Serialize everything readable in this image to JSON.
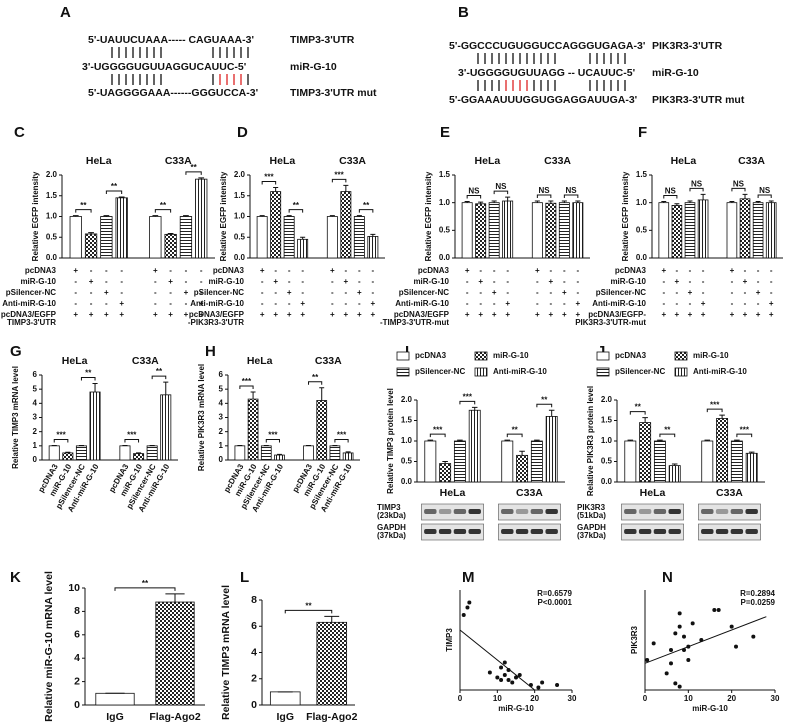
{
  "sequence_panels": [
    {
      "label": "A",
      "rows": [
        {
          "seq": "5'-UAUUCUAAA----- CAGUAAA-3'",
          "name": "TIMP3-3'UTR"
        },
        {
          "seq": "3'-UGGGGUGUUAGGUCAUUC-5'",
          "name": "miR-G-10"
        },
        {
          "seq": "5'-UAGGGGAAA------GGGUCCA-3'",
          "name": "TIMP3-3'UTR mut"
        }
      ]
    },
    {
      "label": "B",
      "rows": [
        {
          "seq": "5'-GGCCCUGUGGUCCAGGGUGAGA-3'",
          "name": "PIK3R3-3'UTR"
        },
        {
          "seq": "3'-UGGGGUGUUAGG -- UCAUUC-5'",
          "name": "miR-G-10"
        },
        {
          "seq": "5'-GGAAAUUUGGUGGAGGAUUGA-3'",
          "name": "PIK3R3-3'UTR mut"
        }
      ]
    }
  ],
  "chart_data": [
    {
      "type": "bar",
      "label": "C",
      "ylabel": "Relative EGFP intensity",
      "groups": [
        "HeLa",
        "C33A"
      ],
      "values": [
        1,
        0.58,
        1,
        1.45,
        1,
        0.57,
        1,
        1.9
      ],
      "errors": [
        0.02,
        0.03,
        0.02,
        0.02,
        0.02,
        0.02,
        0.02,
        0.03
      ],
      "significance": [
        "**",
        "**",
        "**",
        "**"
      ],
      "ylim": [
        0,
        2
      ],
      "yticks": [
        {
          "value": 0,
          "label": "0.0"
        },
        {
          "value": 0.5,
          "label": "0.5"
        },
        {
          "value": 1,
          "label": "1.0"
        },
        {
          "value": 1.5,
          "label": "1.5"
        },
        {
          "value": 2,
          "label": "2.0"
        }
      ],
      "treatments": [
        {
          "label": [
            "pcDNA3"
          ],
          "signs": [
            "+",
            "-",
            "-",
            "-",
            "+",
            "-",
            "-",
            "-"
          ]
        },
        {
          "label": [
            "miR-G-10"
          ],
          "signs": [
            "-",
            "+",
            "-",
            "-",
            "-",
            "+",
            "-",
            "-"
          ]
        },
        {
          "label": [
            "pSilencer-NC"
          ],
          "signs": [
            "-",
            "-",
            "+",
            "-",
            "-",
            "-",
            "+",
            "-"
          ]
        },
        {
          "label": [
            "Anti-miR-G-10"
          ],
          "signs": [
            "-",
            "-",
            "-",
            "+",
            "-",
            "-",
            "-",
            "+"
          ]
        },
        {
          "label": [
            "pcDNA3/EGFP",
            "TIMP3-3'UTR"
          ],
          "signs": [
            "+",
            "+",
            "+",
            "+",
            "+",
            "+",
            "+",
            "+"
          ]
        }
      ]
    },
    {
      "type": "bar",
      "label": "D",
      "ylabel": "Relative EGFP intensity",
      "groups": [
        "HeLa",
        "C33A"
      ],
      "values": [
        1,
        1.6,
        1,
        0.45,
        1,
        1.6,
        1,
        0.52
      ],
      "errors": [
        0.02,
        0.1,
        0.02,
        0.05,
        0.02,
        0.15,
        0.02,
        0.05
      ],
      "significance": [
        "***",
        "**",
        "***",
        "**"
      ],
      "ylim": [
        0,
        2
      ],
      "yticks": [
        {
          "value": 0,
          "label": "0.0"
        },
        {
          "value": 0.5,
          "label": "0.5"
        },
        {
          "value": 1,
          "label": "1.0"
        },
        {
          "value": 1.5,
          "label": "1.5"
        },
        {
          "value": 2,
          "label": "2.0"
        }
      ],
      "treatments": [
        {
          "label": [
            "pcDNA3"
          ],
          "signs": [
            "+",
            "-",
            "-",
            "-",
            "+",
            "-",
            "-",
            "-"
          ]
        },
        {
          "label": [
            "miR-G-10"
          ],
          "signs": [
            "-",
            "+",
            "-",
            "-",
            "-",
            "+",
            "-",
            "-"
          ]
        },
        {
          "label": [
            "pSilencer-NC"
          ],
          "signs": [
            "-",
            "-",
            "+",
            "-",
            "-",
            "-",
            "+",
            "-"
          ]
        },
        {
          "label": [
            "Anti-miR-G-10"
          ],
          "signs": [
            "-",
            "-",
            "-",
            "+",
            "-",
            "-",
            "-",
            "+"
          ]
        },
        {
          "label": [
            "pcDNA3/EGFP",
            "-PIK3R3-3'UTR"
          ],
          "signs": [
            "+",
            "+",
            "+",
            "+",
            "+",
            "+",
            "+",
            "+"
          ]
        }
      ]
    },
    {
      "type": "bar",
      "label": "E",
      "ylabel": "Relative EGFP intensity",
      "groups": [
        "HeLa",
        "C33A"
      ],
      "values": [
        1,
        0.98,
        1,
        1.03,
        1,
        0.99,
        1,
        1
      ],
      "errors": [
        0.02,
        0.03,
        0.03,
        0.07,
        0.03,
        0.04,
        0.03,
        0.03
      ],
      "significance": [
        "NS",
        "NS",
        "NS",
        "NS"
      ],
      "ylim": [
        0,
        1.5
      ],
      "yticks": [
        {
          "value": 0,
          "label": "0.0"
        },
        {
          "value": 0.5,
          "label": "0.5"
        },
        {
          "value": 1,
          "label": "1.0"
        },
        {
          "value": 1.5,
          "label": "1.5"
        }
      ],
      "treatments": [
        {
          "label": [
            "pcDNA3"
          ],
          "signs": [
            "+",
            "-",
            "-",
            "-",
            "+",
            "-",
            "-",
            "-"
          ]
        },
        {
          "label": [
            "miR-G-10"
          ],
          "signs": [
            "-",
            "+",
            "-",
            "-",
            "-",
            "+",
            "-",
            "-"
          ]
        },
        {
          "label": [
            "pSilencer-NC"
          ],
          "signs": [
            "-",
            "-",
            "+",
            "-",
            "-",
            "-",
            "+",
            "-"
          ]
        },
        {
          "label": [
            "Anti-miR-G-10"
          ],
          "signs": [
            "-",
            "-",
            "-",
            "+",
            "-",
            "-",
            "-",
            "+"
          ]
        },
        {
          "label": [
            "pcDNA3/EGFP",
            "-TIMP3-3'UTR-mut"
          ],
          "signs": [
            "+",
            "+",
            "+",
            "+",
            "+",
            "+",
            "+",
            "+"
          ]
        }
      ]
    },
    {
      "type": "bar",
      "label": "F",
      "ylabel": "Relative EGFP intensity",
      "groups": [
        "HeLa",
        "C33A"
      ],
      "values": [
        1,
        0.95,
        1,
        1.05,
        1,
        1.07,
        1,
        1
      ],
      "errors": [
        0.02,
        0.03,
        0.03,
        0.1,
        0.02,
        0.08,
        0.02,
        0.03
      ],
      "significance": [
        "NS",
        "NS",
        "NS",
        "NS"
      ],
      "ylim": [
        0,
        1.5
      ],
      "yticks": [
        {
          "value": 0,
          "label": "0.0"
        },
        {
          "value": 0.5,
          "label": "0.5"
        },
        {
          "value": 1,
          "label": "1.0"
        },
        {
          "value": 1.5,
          "label": "1.5"
        }
      ],
      "treatments": [
        {
          "label": [
            "pcDNA3"
          ],
          "signs": [
            "+",
            "-",
            "-",
            "-",
            "+",
            "-",
            "-",
            "-"
          ]
        },
        {
          "label": [
            "miR-G-10"
          ],
          "signs": [
            "-",
            "+",
            "-",
            "-",
            "-",
            "+",
            "-",
            "-"
          ]
        },
        {
          "label": [
            "pSilencer-NC"
          ],
          "signs": [
            "-",
            "-",
            "+",
            "-",
            "-",
            "-",
            "+",
            "-"
          ]
        },
        {
          "label": [
            "Anti-miR-G-10"
          ],
          "signs": [
            "-",
            "-",
            "-",
            "+",
            "-",
            "-",
            "-",
            "+"
          ]
        },
        {
          "label": [
            "pcDNA3/EGFP-",
            "PIK3R3-3'UTR-mut"
          ],
          "signs": [
            "+",
            "+",
            "+",
            "+",
            "+",
            "+",
            "+",
            "+"
          ]
        }
      ]
    },
    {
      "type": "bar",
      "label": "G",
      "ylabel": "Relative TIMP3 mRNA level",
      "groups": [
        "HeLa",
        "C33A"
      ],
      "categories": [
        "pcDNA3",
        "miR-G-10",
        "pSilencer-NC",
        "Anti-miR-G-10",
        "pcDNA3",
        "miR-G-10",
        "pSilencer-NC",
        "Anti-miR-G-10"
      ],
      "values": [
        1,
        0.5,
        1,
        4.8,
        1,
        0.45,
        1,
        4.6
      ],
      "errors": [
        0.02,
        0.05,
        0.02,
        0.6,
        0.02,
        0.05,
        0.02,
        0.9
      ],
      "significance": [
        "***",
        "**",
        "***",
        "**"
      ],
      "ylim": [
        0,
        6
      ],
      "yticks": [
        0,
        1,
        2,
        3,
        4,
        5,
        6
      ]
    },
    {
      "type": "bar",
      "label": "H",
      "ylabel": "Relative PIK3R3 mRNA level",
      "groups": [
        "HeLa",
        "C33A"
      ],
      "categories": [
        "pcDNA3",
        "miR-G-10",
        "pSilencer-NC",
        "Anti-miR-G-10",
        "pcDNA3",
        "miR-G-10",
        "pSilencer-NC",
        "Anti-miR-G-10"
      ],
      "values": [
        1,
        4.3,
        1,
        0.35,
        1,
        4.2,
        1,
        0.5
      ],
      "errors": [
        0.02,
        0.5,
        0.02,
        0.05,
        0.02,
        0.9,
        0.02,
        0.07
      ],
      "significance": [
        "***",
        "***",
        "**",
        "***"
      ],
      "ylim": [
        0,
        6
      ],
      "yticks": [
        0,
        1,
        2,
        3,
        4,
        5,
        6
      ]
    },
    {
      "type": "bar",
      "label": "I",
      "ylabel": "Relative TIMP3 protein level",
      "groups": [
        "HeLa",
        "C33A"
      ],
      "legend": [
        "pcDNA3",
        "miR-G-10",
        "pSilencer-NC",
        "Anti-miR-G-10"
      ],
      "values": [
        1,
        0.45,
        1,
        1.75,
        1,
        0.65,
        1,
        1.6
      ],
      "errors": [
        0.02,
        0.05,
        0.02,
        0.07,
        0.02,
        0.1,
        0.02,
        0.15
      ],
      "significance": [
        "***",
        "***",
        "**",
        "**"
      ],
      "ylim": [
        0,
        2
      ],
      "yticks": [
        {
          "value": 0,
          "label": "0.0"
        },
        {
          "value": 0.5,
          "label": "0.5"
        },
        {
          "value": 1,
          "label": "1.0"
        },
        {
          "value": 1.5,
          "label": "1.5"
        },
        {
          "value": 2,
          "label": "2.0"
        }
      ],
      "blot_labels": [
        [
          "TIMP3",
          "(23kDa)"
        ],
        [
          "GAPDH",
          "(37kDa)"
        ]
      ]
    },
    {
      "type": "bar",
      "label": "J",
      "ylabel": "Relative PIK3R3 protein level",
      "groups": [
        "HeLa",
        "C33A"
      ],
      "legend": [
        "pcDNA3",
        "miR-G-10",
        "pSilencer-NC",
        "Anti-miR-G-10"
      ],
      "values": [
        1,
        1.45,
        1,
        0.4,
        1,
        1.55,
        1,
        0.7
      ],
      "errors": [
        0.02,
        0.12,
        0.02,
        0.04,
        0.02,
        0.08,
        0.02,
        0.03
      ],
      "significance": [
        "**",
        "**",
        "***",
        "***"
      ],
      "ylim": [
        0,
        2
      ],
      "yticks": [
        {
          "value": 0,
          "label": "0.0"
        },
        {
          "value": 0.5,
          "label": "0.5"
        },
        {
          "value": 1,
          "label": "1.0"
        },
        {
          "value": 1.5,
          "label": "1.5"
        },
        {
          "value": 2,
          "label": "2.0"
        }
      ],
      "blot_labels": [
        [
          "PIK3R3",
          "(51kDa)"
        ],
        [
          "GAPDH",
          "(37kDa)"
        ]
      ]
    },
    {
      "type": "bar",
      "label": "K",
      "ylabel": "Relative miR-G-10 mRNA level",
      "categories": [
        "IgG",
        "Flag-Ago2"
      ],
      "values": [
        1,
        8.8
      ],
      "errors": [
        0,
        0.7
      ],
      "significance": [
        "**"
      ],
      "ylim": [
        0,
        10
      ],
      "yticks": [
        0,
        2,
        4,
        6,
        8,
        10
      ]
    },
    {
      "type": "bar",
      "label": "L",
      "ylabel": "Relative TIMP3 mRNA level",
      "categories": [
        "IgG",
        "Flag-Ago2"
      ],
      "values": [
        1,
        6.3
      ],
      "errors": [
        0,
        0.45
      ],
      "significance": [
        "**"
      ],
      "ylim": [
        0,
        8
      ],
      "yticks": [
        0,
        2,
        4,
        6,
        8
      ]
    },
    {
      "type": "scatter",
      "label": "M",
      "xlabel": "miR-G-10",
      "ylabel": "TIMP3",
      "annotations": [
        "R=0.6579",
        "P<0.0001"
      ],
      "x": [
        1,
        2,
        2.5,
        8,
        10,
        11,
        12,
        13,
        13,
        14,
        15,
        16,
        12,
        11,
        19,
        21,
        22,
        26
      ],
      "y": [
        0.3,
        0.33,
        0.35,
        0.07,
        0.05,
        0.09,
        0.06,
        0.04,
        0.08,
        0.03,
        0.05,
        0.06,
        0.11,
        0.04,
        0.02,
        0.01,
        0.03,
        0.02
      ],
      "trend": {
        "x": [
          0,
          20
        ],
        "y": [
          0.24,
          0
        ]
      },
      "xlim": [
        0,
        30
      ],
      "xticks": [
        0,
        10,
        20,
        30
      ],
      "ylim": [
        0,
        0.4
      ]
    },
    {
      "type": "scatter",
      "label": "N",
      "xlabel": "miR-G-10",
      "ylabel": "PIK3R3",
      "annotations": [
        "R=0.2894",
        "P=0.0259"
      ],
      "x": [
        0.5,
        2,
        5,
        6,
        6,
        7,
        7,
        8,
        8,
        8,
        9,
        9,
        10,
        10,
        11,
        13,
        16,
        17,
        20,
        21,
        25
      ],
      "y": [
        0.09,
        0.14,
        0.05,
        0.08,
        0.12,
        0.02,
        0.17,
        0.01,
        0.19,
        0.23,
        0.12,
        0.16,
        0.09,
        0.13,
        0.2,
        0.15,
        0.24,
        0.24,
        0.19,
        0.13,
        0.16
      ],
      "trend": {
        "x": [
          0,
          28
        ],
        "y": [
          0.08,
          0.22
        ]
      },
      "xlim": [
        0,
        30
      ],
      "xticks": [
        0,
        10,
        20,
        30
      ],
      "ylim": [
        0,
        0.3
      ]
    }
  ]
}
